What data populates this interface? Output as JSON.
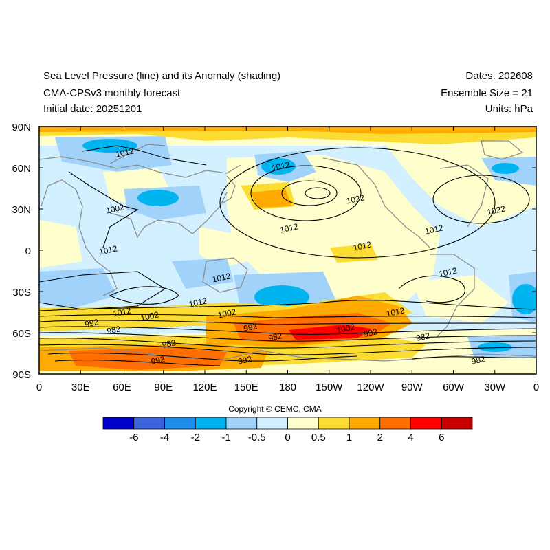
{
  "header": {
    "title_line1": "Sea Level Pressure (line) and its Anomaly (shading)",
    "title_line2": "CMA-CPSv3 monthly forecast",
    "title_line3": "Initial date: 20251201",
    "dates": "Dates: 202608",
    "ensemble": "Ensemble Size = 21",
    "units": "Units: hPa"
  },
  "map": {
    "lat_labels": [
      "90N",
      "60N",
      "30N",
      "0",
      "30S",
      "60S",
      "90S"
    ],
    "lon_labels": [
      "0",
      "30E",
      "60E",
      "90E",
      "120E",
      "150E",
      "180",
      "150W",
      "120W",
      "90W",
      "60W",
      "30W",
      "0"
    ],
    "contour_labels": [
      {
        "text": "1012",
        "lon": 62,
        "lat": 71
      },
      {
        "text": "1012",
        "lon": 175,
        "lat": 61
      },
      {
        "text": "1022",
        "lon": 229,
        "lat": 37
      },
      {
        "text": "1022",
        "lon": 331,
        "lat": 29
      },
      {
        "text": "1002",
        "lon": 55,
        "lat": 30
      },
      {
        "text": "1012",
        "lon": 181,
        "lat": 16
      },
      {
        "text": "1012",
        "lon": 50,
        "lat": 0
      },
      {
        "text": "1012",
        "lon": 234,
        "lat": 3
      },
      {
        "text": "1012",
        "lon": 286,
        "lat": 15
      },
      {
        "text": "1012",
        "lon": 296,
        "lat": -16
      },
      {
        "text": "1012",
        "lon": 132,
        "lat": -20
      },
      {
        "text": "1012",
        "lon": 115,
        "lat": -38
      },
      {
        "text": "1012",
        "lon": 60,
        "lat": -45
      },
      {
        "text": "1002",
        "lon": 80,
        "lat": -48
      },
      {
        "text": "1002",
        "lon": 136,
        "lat": -46
      },
      {
        "text": "1012",
        "lon": 258,
        "lat": -45
      },
      {
        "text": "992",
        "lon": 38,
        "lat": -53
      },
      {
        "text": "982",
        "lon": 54,
        "lat": -58
      },
      {
        "text": "992",
        "lon": 153,
        "lat": -56
      },
      {
        "text": "982",
        "lon": 171,
        "lat": -63
      },
      {
        "text": "1002",
        "lon": 222,
        "lat": -57
      },
      {
        "text": "992",
        "lon": 240,
        "lat": -60
      },
      {
        "text": "982",
        "lon": 278,
        "lat": -63
      },
      {
        "text": "982",
        "lon": 94,
        "lat": -68
      },
      {
        "text": "992",
        "lon": 86,
        "lat": -80
      },
      {
        "text": "992",
        "lon": 149,
        "lat": -80
      },
      {
        "text": "982",
        "lon": 318,
        "lat": -80
      }
    ]
  },
  "colorbar": {
    "ticks": [
      "-6",
      "-4",
      "-2",
      "-1",
      "-0.5",
      "0",
      "0.5",
      "1",
      "2",
      "4",
      "6"
    ],
    "colors": [
      "#0000cd",
      "#3c64dc",
      "#1e8ceb",
      "#00b4f0",
      "#a0d2fa",
      "#d2f0ff",
      "#ffffcd",
      "#fadc32",
      "#ffaa00",
      "#ff6e00",
      "#ff0000",
      "#c80000"
    ]
  },
  "copyright": "Copyright © CEMC, CMA"
}
